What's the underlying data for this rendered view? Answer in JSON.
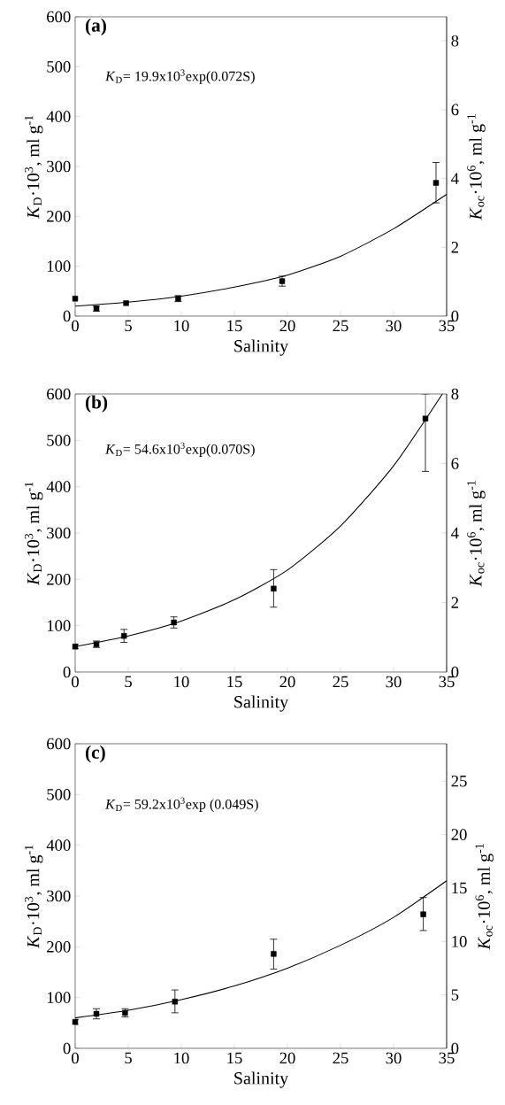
{
  "chart_data": [
    {
      "type": "scatter",
      "title": "(a)",
      "xlabel": "Salinity",
      "ylabel": "*K*$_{D}$·10$^{3}$, ml g$^{-1}$",
      "y2label": "*K*$_{oc}$·10$^{6}$, ml g$^{-1}$",
      "annotations": [
        "*K*$_{D}$= 19.9x10$^{3}$exp(0.072S)"
      ],
      "xlim": [
        0,
        35
      ],
      "xticks": [
        0,
        5,
        10,
        15,
        20,
        25,
        30,
        35
      ],
      "ylim": [
        0,
        600
      ],
      "yticks": [
        0,
        100,
        200,
        300,
        400,
        500,
        600
      ],
      "y2lim": [
        0,
        8.7
      ],
      "y2ticks": [
        0,
        2,
        4,
        6,
        8
      ],
      "series": [
        {
          "type": "scatter",
          "marker": "square",
          "color": "#000000",
          "x": [
            0,
            2,
            4.8,
            9.7,
            19.5,
            34
          ],
          "values": [
            35,
            15,
            26,
            35,
            70,
            267
          ],
          "errors": [
            null,
            5,
            null,
            6,
            10,
            [
              227,
              308
            ]
          ]
        },
        {
          "type": "line",
          "marker": "none",
          "color": "#000000",
          "x": [
            0,
            5,
            10,
            15,
            20,
            25,
            30,
            35
          ],
          "values": [
            20,
            28,
            40,
            58,
            82,
            120,
            175,
            244
          ]
        }
      ]
    },
    {
      "type": "scatter",
      "title": "(b)",
      "xlabel": "Salinity",
      "ylabel": "*K*$_{D}$·10$^{3}$, ml g$^{-1}$",
      "y2label": "*K*$_{oc}$·10$^{6}$, ml g$^{-1}$",
      "annotations": [
        "*K*$_{D}$= 54.6x10$^{3}$exp(0.070S)"
      ],
      "xlim": [
        0,
        35
      ],
      "xticks": [
        0,
        5,
        10,
        15,
        20,
        25,
        30,
        35
      ],
      "ylim": [
        0,
        600
      ],
      "yticks": [
        0,
        100,
        200,
        300,
        400,
        500,
        600
      ],
      "y2lim": [
        0,
        8
      ],
      "y2ticks": [
        0,
        2,
        4,
        6,
        8
      ],
      "series": [
        {
          "type": "scatter",
          "marker": "square",
          "color": "#000000",
          "x": [
            0,
            2,
            4.6,
            9.3,
            18.7,
            33
          ],
          "values": [
            55,
            60,
            78,
            107,
            180,
            547
          ],
          "errors": [
            5,
            7,
            14,
            12,
            [
              140,
              221
            ],
            [
              433,
              600
            ]
          ]
        },
        {
          "type": "line",
          "marker": "none",
          "color": "#000000",
          "x": [
            0,
            5,
            10,
            15,
            20,
            25,
            30,
            34.6
          ],
          "values": [
            55,
            78,
            110,
            156,
            220,
            315,
            445,
            600
          ]
        }
      ]
    },
    {
      "type": "scatter",
      "title": "(c)",
      "xlabel": "Salinity",
      "ylabel": "*K*$_{D}$·10$^{3}$, ml g$^{-1}$",
      "y2label": "*K*$_{oc}$·10$^{6}$, ml g$^{-1}$",
      "annotations": [
        "*K*$_{D}$= 59.2x10$^{3}$exp (0.049S)"
      ],
      "xlim": [
        0,
        35
      ],
      "xticks": [
        0,
        5,
        10,
        15,
        20,
        25,
        30,
        35
      ],
      "ylim": [
        0,
        600
      ],
      "yticks": [
        0,
        100,
        200,
        300,
        400,
        500,
        600
      ],
      "y2lim": [
        0,
        28.5
      ],
      "y2ticks": [
        0,
        5,
        10,
        15,
        20,
        25
      ],
      "series": [
        {
          "type": "scatter",
          "marker": "square",
          "color": "#000000",
          "x": [
            0,
            2,
            4.7,
            9.4,
            18.7,
            32.8
          ],
          "values": [
            52,
            68,
            70,
            92,
            186,
            264
          ],
          "errors": [
            5,
            10,
            8,
            [
              70,
              115
            ],
            [
              156,
              215
            ],
            [
              232,
              297
            ]
          ]
        },
        {
          "type": "line",
          "marker": "none",
          "color": "#000000",
          "x": [
            0,
            5,
            10,
            15,
            20,
            25,
            30,
            35
          ],
          "values": [
            60,
            75,
            96,
            123,
            158,
            203,
            258,
            330
          ]
        }
      ]
    }
  ]
}
